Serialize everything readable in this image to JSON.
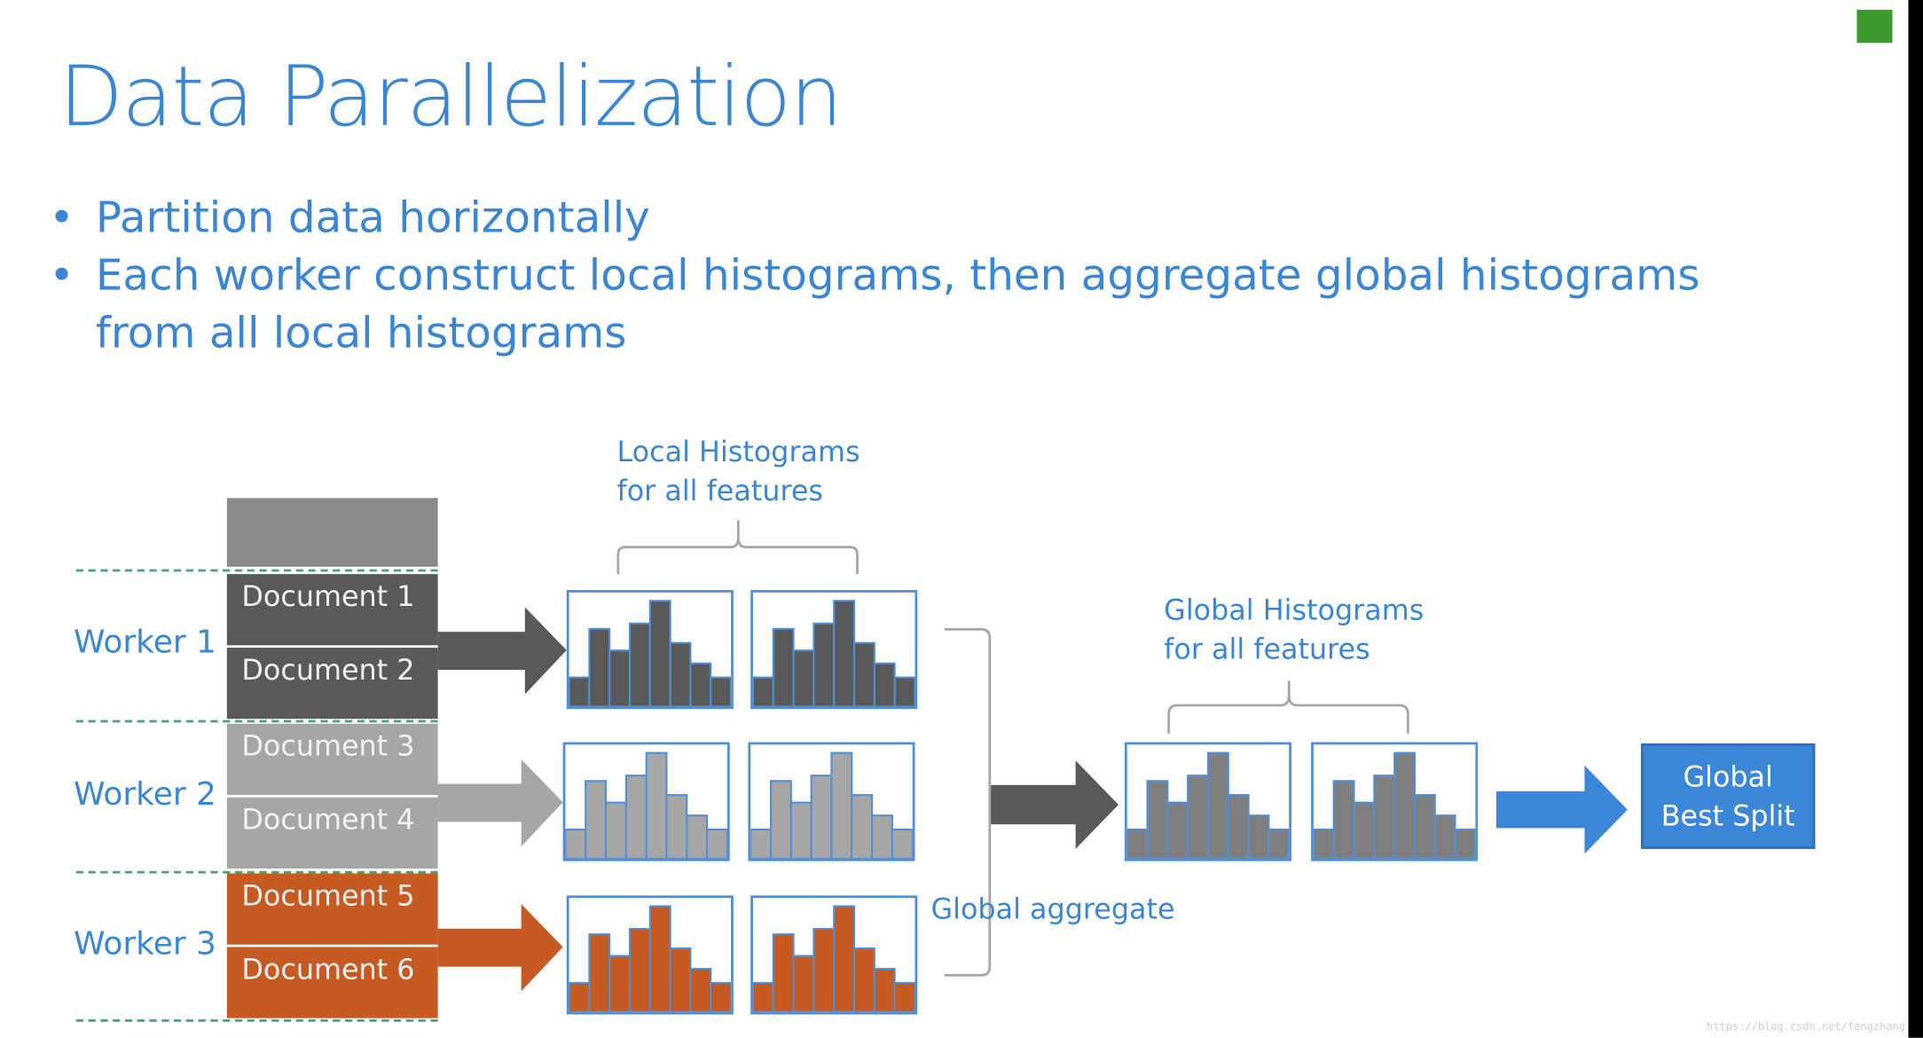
{
  "title": "Data Parallelization",
  "bullets": [
    "Partition data horizontally",
    "Each worker construct local histograms, then aggregate global histograms",
    "from all local histograms"
  ],
  "workers": [
    "Worker 1",
    "Worker 2",
    "Worker 3"
  ],
  "documents": [
    "Document 1",
    "Document 2",
    "Document 3",
    "Document 4",
    "Document 5",
    "Document 6"
  ],
  "local_label": [
    "Local Histograms",
    "for all features"
  ],
  "global_label": [
    "Global Histograms",
    "for all features"
  ],
  "aggregate_label": "Global aggregate",
  "result_label": [
    "Global",
    "Best Split"
  ],
  "watermark": "https://blog.csdn.net/fengzhang",
  "colors": {
    "worker1": "#595959",
    "worker2": "#a6a6a6",
    "worker3": "#c55a22",
    "global": "#7f7f7f",
    "accent": "#3a86d4"
  },
  "histogram_values": [
    0.27,
    0.72,
    0.52,
    0.77,
    0.98,
    0.59,
    0.4,
    0.27
  ]
}
